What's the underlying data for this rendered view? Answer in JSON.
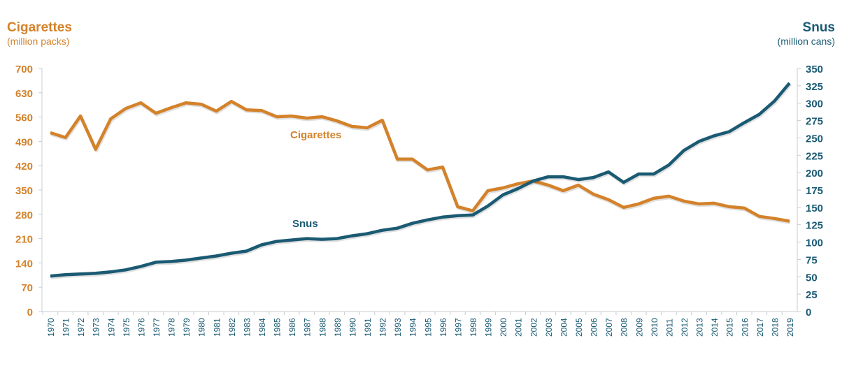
{
  "chart_data": {
    "type": "line",
    "left_axis": {
      "title": "Cigarettes",
      "subtitle": "(million packs)",
      "ylim": [
        0,
        700
      ],
      "ticks": [
        0,
        70,
        140,
        210,
        280,
        350,
        420,
        490,
        560,
        630,
        700
      ]
    },
    "right_axis": {
      "title": "Snus",
      "subtitle": "(million cans)",
      "ylim": [
        0,
        350
      ],
      "ticks": [
        0,
        25,
        50,
        75,
        100,
        125,
        150,
        175,
        200,
        225,
        250,
        275,
        300,
        325,
        350
      ]
    },
    "x": [
      1970,
      1971,
      1972,
      1973,
      1974,
      1975,
      1976,
      1977,
      1978,
      1979,
      1980,
      1981,
      1982,
      1983,
      1984,
      1985,
      1986,
      1987,
      1988,
      1989,
      1990,
      1991,
      1992,
      1993,
      1994,
      1995,
      1996,
      1997,
      1998,
      1999,
      2000,
      2001,
      2002,
      2003,
      2004,
      2005,
      2006,
      2007,
      2008,
      2009,
      2010,
      2011,
      2012,
      2013,
      2014,
      2015,
      2016,
      2017,
      2018,
      2019
    ],
    "series": [
      {
        "name": "Cigarettes",
        "axis": "left",
        "color": "#d4822a",
        "values": [
          515,
          501,
          563,
          467,
          555,
          585,
          601,
          571,
          587,
          601,
          597,
          577,
          605,
          581,
          579,
          561,
          563,
          557,
          561,
          549,
          533,
          529,
          551,
          439,
          439,
          408,
          416,
          302,
          290,
          348,
          356,
          368,
          376,
          364,
          348,
          364,
          338,
          322,
          300,
          310,
          326,
          332,
          318,
          310,
          312,
          302,
          298,
          274,
          268,
          260
        ]
      },
      {
        "name": "Snus",
        "axis": "right",
        "color": "#1a5a73",
        "values": [
          51,
          53,
          54,
          55,
          57,
          60,
          65,
          71,
          72,
          74,
          77,
          80,
          84,
          87,
          96,
          101,
          103,
          105,
          104,
          105,
          109,
          112,
          117,
          120,
          127,
          132,
          136,
          138,
          139,
          152,
          168,
          177,
          188,
          194,
          194,
          190,
          193,
          201,
          186,
          198,
          198,
          211,
          232,
          245,
          253,
          259,
          272,
          284,
          303,
          329
        ]
      }
    ],
    "grid": false,
    "legend": "inline labels"
  }
}
